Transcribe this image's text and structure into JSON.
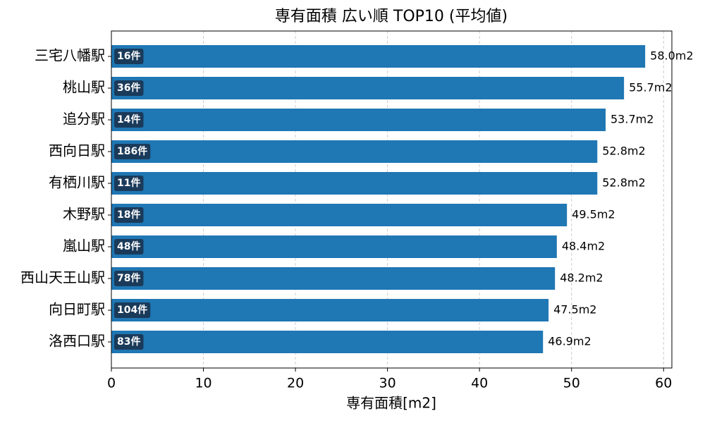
{
  "chart_data": {
    "type": "barh",
    "title": "専有面積 広い順 TOP10 (平均値)",
    "x_label": "専有面積[m2]",
    "categories": [
      "三宅八幡駅",
      "桃山駅",
      "追分駅",
      "西向日駅",
      "有栖川駅",
      "木野駅",
      "嵐山駅",
      "西山天王山駅",
      "向日町駅",
      "洛西口駅"
    ],
    "values": [
      58.0,
      55.7,
      53.7,
      52.8,
      52.8,
      49.5,
      48.4,
      48.2,
      47.5,
      46.9
    ],
    "value_labels": [
      "58.0m2",
      "55.7m2",
      "53.7m2",
      "52.8m2",
      "52.8m2",
      "49.5m2",
      "48.4m2",
      "48.2m2",
      "47.5m2",
      "46.9m2"
    ],
    "count_labels": [
      "16件",
      "36件",
      "14件",
      "186件",
      "11件",
      "18件",
      "48件",
      "78件",
      "104件",
      "83件"
    ],
    "color": "#1f77b4",
    "xlim": [
      0,
      60.9
    ],
    "xticks": [
      0,
      10,
      20,
      30,
      40,
      50,
      60
    ],
    "grid": true
  }
}
